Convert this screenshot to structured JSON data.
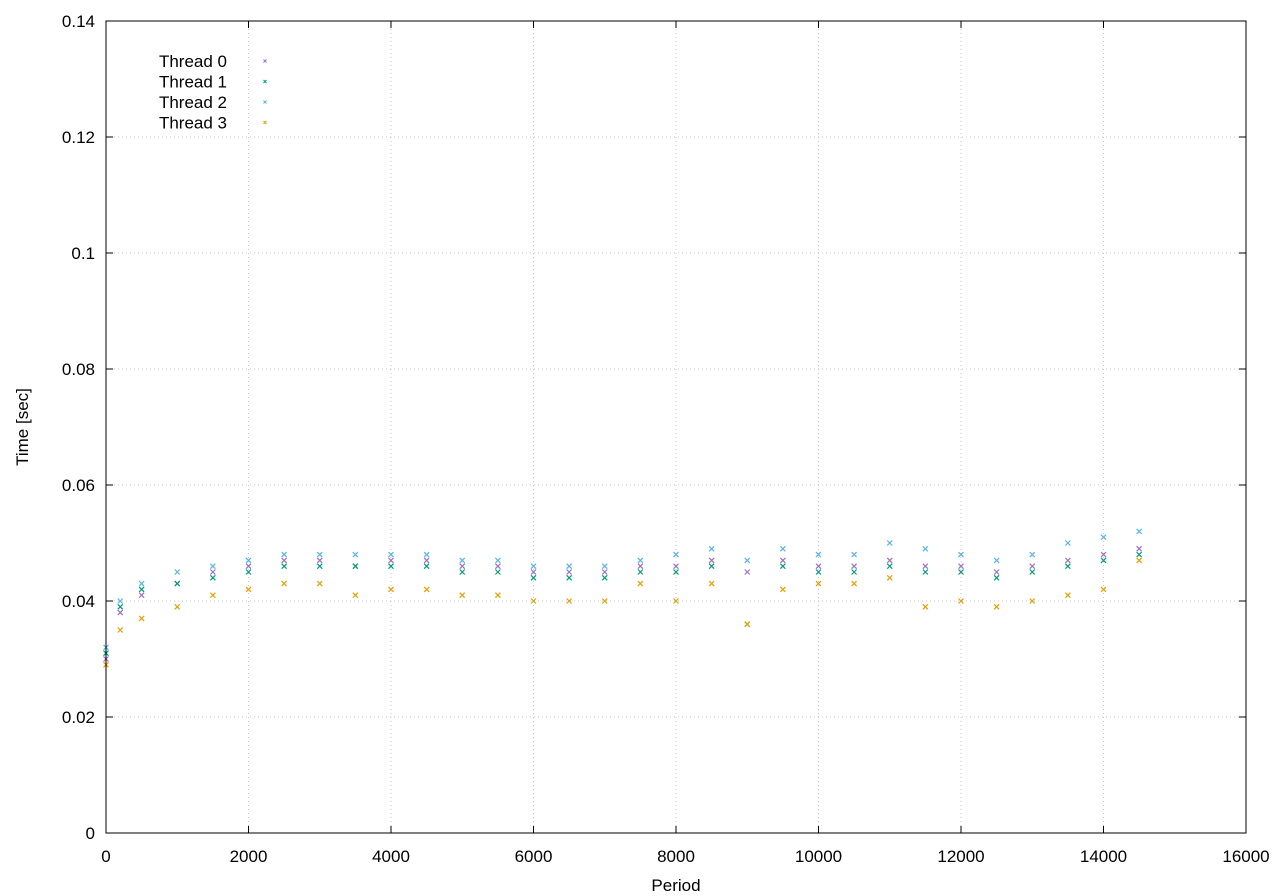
{
  "chart_data": {
    "type": "scatter",
    "title": "",
    "xlabel": "Period",
    "ylabel": "Time [sec]",
    "xlim": [
      0,
      16000
    ],
    "ylim": [
      0,
      0.14
    ],
    "x_ticks": [
      "0",
      "2000",
      "4000",
      "6000",
      "8000",
      "10000",
      "12000",
      "14000",
      "16000"
    ],
    "y_ticks": [
      "0",
      "0.02",
      "0.04",
      "0.06",
      "0.08",
      "0.1",
      "0.12",
      "0.14"
    ],
    "grid": true,
    "legend_position": "top-left",
    "series": [
      {
        "name": "Thread 0",
        "color": "#9b6fcf",
        "x": [
          0,
          200,
          500,
          1000,
          1500,
          2000,
          2500,
          3000,
          3500,
          4000,
          4500,
          5000,
          5500,
          6000,
          6500,
          7000,
          7500,
          8000,
          8500,
          9000,
          9500,
          10000,
          10500,
          11000,
          11500,
          12000,
          12500,
          13000,
          13500,
          14000,
          14500
        ],
        "y": [
          0.03,
          0.038,
          0.041,
          0.043,
          0.045,
          0.046,
          0.047,
          0.047,
          0.046,
          0.047,
          0.047,
          0.046,
          0.046,
          0.045,
          0.045,
          0.045,
          0.046,
          0.046,
          0.047,
          0.045,
          0.047,
          0.046,
          0.046,
          0.047,
          0.046,
          0.046,
          0.045,
          0.046,
          0.047,
          0.048,
          0.049
        ]
      },
      {
        "name": "Thread 1",
        "color": "#009e73",
        "x": [
          0,
          200,
          500,
          1000,
          1500,
          2000,
          2500,
          3000,
          3500,
          4000,
          4500,
          5000,
          5500,
          6000,
          6500,
          7000,
          7500,
          8000,
          8500,
          9000,
          9500,
          10000,
          10500,
          11000,
          11500,
          12000,
          12500,
          13000,
          13500,
          14000,
          14500
        ],
        "y": [
          0.031,
          0.039,
          0.042,
          0.043,
          0.044,
          0.045,
          0.046,
          0.046,
          0.046,
          0.046,
          0.046,
          0.045,
          0.045,
          0.044,
          0.044,
          0.044,
          0.045,
          0.045,
          0.046,
          0.036,
          0.046,
          0.045,
          0.045,
          0.046,
          0.045,
          0.045,
          0.044,
          0.045,
          0.046,
          0.047,
          0.048
        ]
      },
      {
        "name": "Thread 2",
        "color": "#56b4e9",
        "x": [
          0,
          200,
          500,
          1000,
          1500,
          2000,
          2500,
          3000,
          3500,
          4000,
          4500,
          5000,
          5500,
          6000,
          6500,
          7000,
          7500,
          8000,
          8500,
          9000,
          9500,
          10000,
          10500,
          11000,
          11500,
          12000,
          12500,
          13000,
          13500,
          14000,
          14500
        ],
        "y": [
          0.032,
          0.04,
          0.043,
          0.045,
          0.046,
          0.047,
          0.048,
          0.048,
          0.048,
          0.048,
          0.048,
          0.047,
          0.047,
          0.046,
          0.046,
          0.046,
          0.047,
          0.048,
          0.049,
          0.047,
          0.049,
          0.048,
          0.048,
          0.05,
          0.049,
          0.048,
          0.047,
          0.048,
          0.05,
          0.051,
          0.052
        ]
      },
      {
        "name": "Thread 3",
        "color": "#e69f00",
        "x": [
          0,
          200,
          500,
          1000,
          1500,
          2000,
          2500,
          3000,
          3500,
          4000,
          4500,
          5000,
          5500,
          6000,
          6500,
          7000,
          7500,
          8000,
          8500,
          9000,
          9500,
          10000,
          10500,
          11000,
          11500,
          12000,
          12500,
          13000,
          13500,
          14000,
          14500
        ],
        "y": [
          0.029,
          0.035,
          0.037,
          0.039,
          0.041,
          0.042,
          0.043,
          0.043,
          0.041,
          0.042,
          0.042,
          0.041,
          0.041,
          0.04,
          0.04,
          0.04,
          0.043,
          0.04,
          0.043,
          0.036,
          0.042,
          0.043,
          0.043,
          0.044,
          0.039,
          0.04,
          0.039,
          0.04,
          0.041,
          0.042,
          0.047
        ]
      }
    ]
  }
}
